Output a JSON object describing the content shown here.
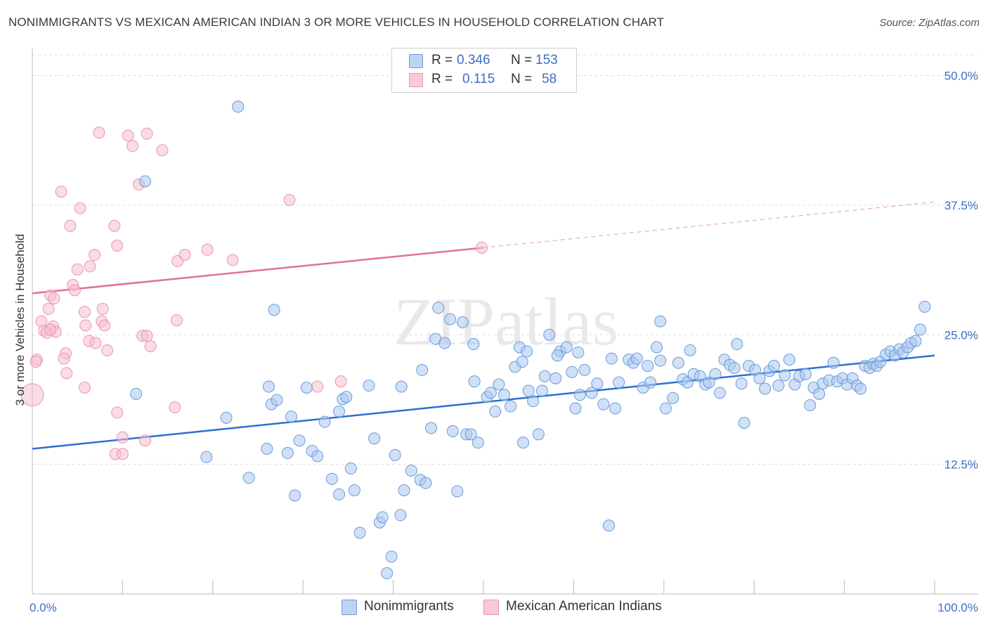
{
  "title": "NONIMMIGRANTS VS MEXICAN AMERICAN INDIAN 3 OR MORE VEHICLES IN HOUSEHOLD CORRELATION CHART",
  "source": "Source: ZipAtlas.com",
  "watermark": "ZIPatlas",
  "legend": {
    "rows": [
      {
        "r_label": "R =",
        "r_value": "0.346",
        "n_label": "N =",
        "n_value": "153"
      },
      {
        "r_label": "R =",
        "r_value": "0.115",
        "n_label": "N =",
        "n_value": "58"
      }
    ]
  },
  "bottom_legend": [
    "Nonimmigrants",
    "Mexican American Indians"
  ],
  "colors": {
    "blue_fill": "#a9c8f0",
    "blue_stroke": "#6a9ad8",
    "blue_line": "#2e6fd0",
    "pink_fill": "#f6bfd0",
    "pink_stroke": "#e896b0",
    "pink_line": "#e07098",
    "tick_label": "#3b6fc4",
    "grid": "#dddddd"
  },
  "chart_data": {
    "type": "scatter",
    "title": "NONIMMIGRANTS VS MEXICAN AMERICAN INDIAN 3 OR MORE VEHICLES IN HOUSEHOLD CORRELATION CHART",
    "xlabel": "",
    "ylabel": "3 or more Vehicles in Household",
    "xlim": [
      0,
      100
    ],
    "ylim": [
      0,
      52
    ],
    "x_tick_labels": [
      "0.0%",
      "100.0%"
    ],
    "y_ticks": [
      12.5,
      25.0,
      37.5,
      50.0
    ],
    "y_tick_labels": [
      "12.5%",
      "25.0%",
      "37.5%",
      "50.0%"
    ],
    "grid": "horizontal dashed",
    "series": [
      {
        "name": "Nonimmigrants",
        "color": "blue",
        "trend": {
          "x": [
            0,
            100
          ],
          "y": [
            14.0,
            23.0
          ],
          "dashed_from": null
        },
        "points": [
          [
            22.8,
            47.0
          ],
          [
            12.5,
            39.8
          ],
          [
            11.5,
            19.3
          ],
          [
            19.3,
            13.2
          ],
          [
            21.5,
            17.0
          ],
          [
            24,
            11.2
          ],
          [
            26,
            14.0
          ],
          [
            26.5,
            18.3
          ],
          [
            26.2,
            20.0
          ],
          [
            27.1,
            18.7
          ],
          [
            26.8,
            27.4
          ],
          [
            28.3,
            13.6
          ],
          [
            29.1,
            9.5
          ],
          [
            28.7,
            17.1
          ],
          [
            29.6,
            14.8
          ],
          [
            30.4,
            19.9
          ],
          [
            31,
            13.8
          ],
          [
            31.6,
            13.3
          ],
          [
            32.4,
            16.6
          ],
          [
            33.2,
            11.1
          ],
          [
            34,
            9.6
          ],
          [
            34.4,
            18.8
          ],
          [
            34.8,
            19.0
          ],
          [
            35.3,
            12.1
          ],
          [
            35.7,
            10.0
          ],
          [
            36.3,
            5.9
          ],
          [
            37.3,
            20.1
          ],
          [
            37.9,
            15.0
          ],
          [
            38.5,
            6.9
          ],
          [
            38.8,
            7.4
          ],
          [
            39.8,
            3.6
          ],
          [
            39.3,
            2.0
          ],
          [
            40.2,
            13.4
          ],
          [
            40.8,
            7.6
          ],
          [
            41.2,
            10.0
          ],
          [
            42.0,
            11.9
          ],
          [
            43.0,
            11.0
          ],
          [
            43.6,
            10.7
          ],
          [
            44.2,
            16.0
          ],
          [
            44.7,
            24.6
          ],
          [
            45.0,
            27.6
          ],
          [
            45.7,
            24.2
          ],
          [
            46.3,
            26.5
          ],
          [
            46.6,
            15.7
          ],
          [
            47.1,
            9.9
          ],
          [
            47.7,
            26.2
          ],
          [
            48.1,
            15.4
          ],
          [
            48.6,
            15.4
          ],
          [
            49.0,
            20.5
          ],
          [
            49.4,
            14.6
          ],
          [
            50.4,
            19.0
          ],
          [
            50.8,
            19.4
          ],
          [
            51.3,
            17.6
          ],
          [
            51.7,
            20.2
          ],
          [
            52.3,
            19.2
          ],
          [
            53.0,
            18.1
          ],
          [
            53.5,
            21.9
          ],
          [
            54.0,
            23.8
          ],
          [
            54.4,
            14.6
          ],
          [
            54.8,
            23.4
          ],
          [
            56.1,
            15.4
          ],
          [
            56.5,
            19.6
          ],
          [
            56.8,
            21.0
          ],
          [
            57.3,
            25.0
          ],
          [
            58.0,
            20.8
          ],
          [
            58.5,
            23.4
          ],
          [
            59.2,
            23.8
          ],
          [
            59.8,
            21.4
          ],
          [
            60.2,
            17.9
          ],
          [
            60.7,
            19.2
          ],
          [
            61.2,
            21.6
          ],
          [
            62.0,
            19.4
          ],
          [
            62.6,
            20.3
          ],
          [
            63.3,
            18.3
          ],
          [
            63.9,
            6.6
          ],
          [
            64.2,
            22.7
          ],
          [
            64.6,
            17.9
          ],
          [
            65.0,
            20.4
          ],
          [
            66.1,
            22.6
          ],
          [
            66.6,
            22.3
          ],
          [
            67.0,
            22.7
          ],
          [
            67.7,
            19.9
          ],
          [
            68.2,
            22.0
          ],
          [
            68.5,
            20.4
          ],
          [
            69.2,
            23.8
          ],
          [
            69.6,
            22.5
          ],
          [
            70.2,
            17.9
          ],
          [
            71.0,
            18.9
          ],
          [
            71.6,
            22.3
          ],
          [
            72.1,
            20.7
          ],
          [
            72.6,
            20.4
          ],
          [
            72.9,
            23.5
          ],
          [
            73.3,
            21.2
          ],
          [
            74.0,
            21.0
          ],
          [
            74.6,
            20.2
          ],
          [
            75.0,
            20.4
          ],
          [
            75.7,
            21.2
          ],
          [
            76.2,
            19.4
          ],
          [
            76.7,
            22.6
          ],
          [
            77.3,
            22.1
          ],
          [
            77.8,
            21.8
          ],
          [
            78.1,
            24.1
          ],
          [
            78.6,
            20.3
          ],
          [
            78.9,
            16.5
          ],
          [
            79.4,
            22.0
          ],
          [
            80.1,
            21.6
          ],
          [
            80.6,
            20.8
          ],
          [
            81.2,
            19.8
          ],
          [
            81.7,
            21.5
          ],
          [
            82.2,
            22.0
          ],
          [
            82.7,
            20.1
          ],
          [
            83.4,
            21.1
          ],
          [
            83.9,
            22.6
          ],
          [
            84.5,
            20.2
          ],
          [
            85.0,
            21.0
          ],
          [
            85.7,
            21.2
          ],
          [
            86.2,
            18.2
          ],
          [
            86.6,
            19.9
          ],
          [
            87.2,
            19.3
          ],
          [
            87.6,
            20.3
          ],
          [
            88.3,
            20.6
          ],
          [
            88.8,
            22.3
          ],
          [
            89.2,
            20.5
          ],
          [
            89.8,
            20.8
          ],
          [
            90.3,
            20.2
          ],
          [
            90.9,
            20.8
          ],
          [
            91.4,
            20.1
          ],
          [
            91.8,
            19.8
          ],
          [
            92.3,
            22.0
          ],
          [
            92.8,
            21.8
          ],
          [
            93.2,
            22.2
          ],
          [
            93.6,
            22.0
          ],
          [
            94.0,
            22.4
          ],
          [
            94.6,
            23.1
          ],
          [
            95.1,
            23.4
          ],
          [
            95.6,
            23.0
          ],
          [
            96.1,
            23.6
          ],
          [
            96.5,
            23.3
          ],
          [
            97.0,
            23.8
          ],
          [
            97.4,
            24.2
          ],
          [
            97.9,
            24.4
          ],
          [
            98.4,
            25.5
          ],
          [
            98.9,
            27.7
          ],
          [
            40.9,
            20.0
          ],
          [
            43.2,
            21.6
          ],
          [
            55.0,
            19.6
          ],
          [
            48.9,
            24.1
          ],
          [
            60.5,
            23.3
          ],
          [
            69.6,
            26.3
          ],
          [
            55.5,
            18.6
          ],
          [
            34.0,
            17.6
          ],
          [
            58.2,
            23.0
          ],
          [
            54.3,
            22.4
          ]
        ]
      },
      {
        "name": "Mexican American Indians",
        "color": "pink",
        "trend": {
          "x": [
            0,
            100
          ],
          "y": [
            29.0,
            37.8
          ],
          "solid_to": 50
        },
        "points": [
          [
            7.4,
            44.5
          ],
          [
            10.6,
            44.2
          ],
          [
            11.1,
            43.2
          ],
          [
            12.7,
            44.4
          ],
          [
            14.4,
            42.8
          ],
          [
            11.8,
            39.5
          ],
          [
            3.2,
            38.8
          ],
          [
            28.5,
            38.0
          ],
          [
            5.3,
            37.2
          ],
          [
            4.2,
            35.5
          ],
          [
            9.1,
            35.5
          ],
          [
            9.4,
            33.6
          ],
          [
            16.1,
            32.1
          ],
          [
            16.9,
            32.7
          ],
          [
            19.4,
            33.2
          ],
          [
            22.2,
            32.2
          ],
          [
            49.8,
            33.4
          ],
          [
            5.0,
            31.3
          ],
          [
            6.4,
            31.6
          ],
          [
            6.9,
            32.7
          ],
          [
            4.5,
            29.8
          ],
          [
            4.7,
            29.3
          ],
          [
            2.0,
            28.8
          ],
          [
            2.4,
            28.5
          ],
          [
            1.8,
            27.5
          ],
          [
            5.8,
            27.2
          ],
          [
            7.8,
            27.5
          ],
          [
            1.0,
            26.3
          ],
          [
            1.3,
            25.4
          ],
          [
            1.6,
            25.2
          ],
          [
            2.3,
            25.8
          ],
          [
            2.6,
            25.3
          ],
          [
            5.9,
            25.9
          ],
          [
            7.7,
            26.3
          ],
          [
            8.0,
            25.9
          ],
          [
            6.3,
            24.4
          ],
          [
            7.0,
            24.2
          ],
          [
            8.3,
            23.5
          ],
          [
            12.2,
            24.9
          ],
          [
            12.7,
            24.9
          ],
          [
            13.1,
            23.9
          ],
          [
            16.0,
            26.4
          ],
          [
            3.7,
            23.2
          ],
          [
            3.5,
            22.7
          ],
          [
            0.5,
            22.6
          ],
          [
            0.4,
            22.4
          ],
          [
            3.8,
            21.3
          ],
          [
            5.8,
            19.9
          ],
          [
            9.4,
            17.5
          ],
          [
            10.0,
            15.1
          ],
          [
            12.5,
            14.8
          ],
          [
            15.8,
            18.0
          ],
          [
            9.2,
            13.5
          ],
          [
            10.0,
            13.5
          ],
          [
            31.6,
            20.0
          ],
          [
            34.2,
            20.5
          ],
          [
            0.0,
            19.2
          ],
          [
            2.0,
            25.5
          ]
        ]
      }
    ]
  }
}
